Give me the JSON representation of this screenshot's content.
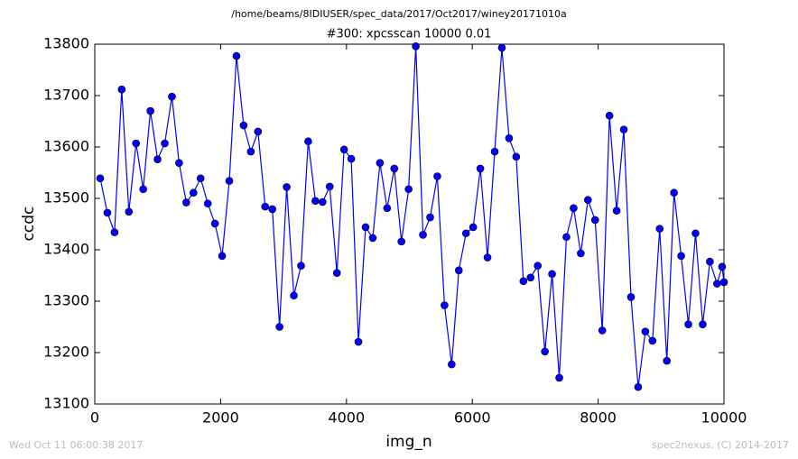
{
  "chart_data": {
    "type": "line",
    "suptitle": "/home/beams/8IDIUSER/spec_data/2017/Oct2017/winey20171010a",
    "title": "#300: xpcsscan 10000 0.01",
    "x_label": "img_n",
    "y_label": "ccdc",
    "footer_left": "Wed Oct 11 06:00:38 2017",
    "footer_right": "spec2nexus, (C) 2014-2017",
    "color": "#0000ff",
    "marker": "o",
    "x": [
      86,
      200,
      314,
      428,
      542,
      656,
      770,
      884,
      998,
      1112,
      1226,
      1340,
      1454,
      1568,
      1682,
      1796,
      1910,
      2024,
      2138,
      2252,
      2366,
      2480,
      2594,
      2708,
      2822,
      2936,
      3050,
      3164,
      3278,
      3392,
      3506,
      3620,
      3734,
      3848,
      3962,
      4076,
      4190,
      4304,
      4418,
      4532,
      4646,
      4760,
      4874,
      4988,
      5102,
      5216,
      5330,
      5444,
      5558,
      5672,
      5786,
      5900,
      6014,
      6128,
      6242,
      6356,
      6470,
      6584,
      6698,
      6812,
      6926,
      7040,
      7154,
      7268,
      7382,
      7496,
      7610,
      7724,
      7838,
      7952,
      8066,
      8180,
      8294,
      8408,
      8522,
      8636,
      8750,
      8864,
      8978,
      9092,
      9206,
      9320,
      9434,
      9548,
      9662,
      9776,
      9890,
      9970,
      10000
    ],
    "values": [
      13539,
      13472,
      13434,
      13712,
      13474,
      13607,
      13518,
      13670,
      13576,
      13607,
      13698,
      13569,
      13492,
      13511,
      13539,
      13490,
      13451,
      13388,
      13534,
      13777,
      13642,
      13591,
      13630,
      13484,
      13479,
      13250,
      13522,
      13311,
      13369,
      13611,
      13495,
      13493,
      13523,
      13355,
      13595,
      13577,
      13221,
      13444,
      13423,
      13569,
      13481,
      13558,
      13416,
      13518,
      13796,
      13429,
      13463,
      13543,
      13292,
      13177,
      13360,
      13432,
      13444,
      13558,
      13385,
      13591,
      13793,
      13617,
      13581,
      13339,
      13346,
      13369,
      13202,
      13353,
      13151,
      13425,
      13481,
      13393,
      13497,
      13458,
      13243,
      13661,
      13476,
      13634,
      13308,
      13133,
      13241,
      13223,
      13441,
      13184,
      13511,
      13388,
      13255,
      13432,
      13255,
      13377,
      13334,
      13367,
      13337
    ],
    "xlim": [
      0,
      10000
    ],
    "xticks": [
      0,
      2000,
      4000,
      6000,
      8000,
      10000
    ],
    "ylim": [
      13100,
      13800
    ],
    "yticks": [
      13100,
      13200,
      13300,
      13400,
      13500,
      13600,
      13700,
      13800
    ],
    "grid": false
  }
}
